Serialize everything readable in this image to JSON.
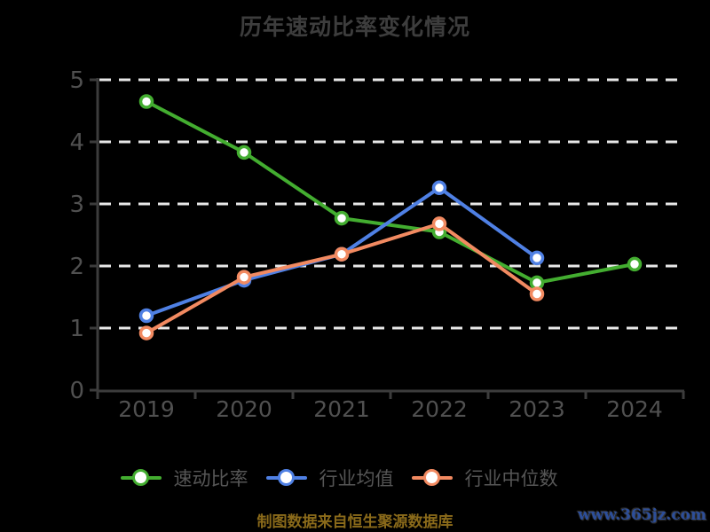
{
  "title": "历年速动比率变化情况",
  "caption": "制图数据来自恒生聚源数据库",
  "watermark": "www.365jz.com",
  "colors": {
    "background": "#000000",
    "title": "#3d3d3d",
    "axis": "#3c3c3c",
    "tick_label": "#505050",
    "grid": "#e8e8e8",
    "legend_text": "#565656",
    "caption": "#8a6a1a",
    "watermark": "#2c4e9a",
    "marker_fill": "#ffffff",
    "quick_ratio": "#43ad30",
    "industry_mean": "#4f80e4",
    "industry_median": "#f28a61"
  },
  "chart_data": {
    "type": "line",
    "title": "历年速动比率变化情况",
    "categories": [
      "2019",
      "2020",
      "2021",
      "2022",
      "2023",
      "2024"
    ],
    "series": [
      {
        "name": "速动比率",
        "key": "quick-ratio",
        "color_key": "quick_ratio",
        "values": [
          4.65,
          3.83,
          2.77,
          2.55,
          1.73,
          2.03
        ]
      },
      {
        "name": "行业均值",
        "key": "industry-mean",
        "color_key": "industry_mean",
        "values": [
          1.2,
          1.77,
          2.19,
          3.26,
          2.13,
          null
        ]
      },
      {
        "name": "行业中位数",
        "key": "industry-median",
        "color_key": "industry_median",
        "values": [
          0.92,
          1.82,
          2.19,
          2.68,
          1.55,
          null
        ]
      }
    ],
    "xlabel": "",
    "ylabel": "",
    "ylim": [
      0,
      5
    ],
    "yticks": [
      0,
      1,
      2,
      3,
      4,
      5
    ],
    "grid": "horizontal-dashed-white",
    "legend_position": "bottom",
    "marker": "circle-white-fill"
  }
}
